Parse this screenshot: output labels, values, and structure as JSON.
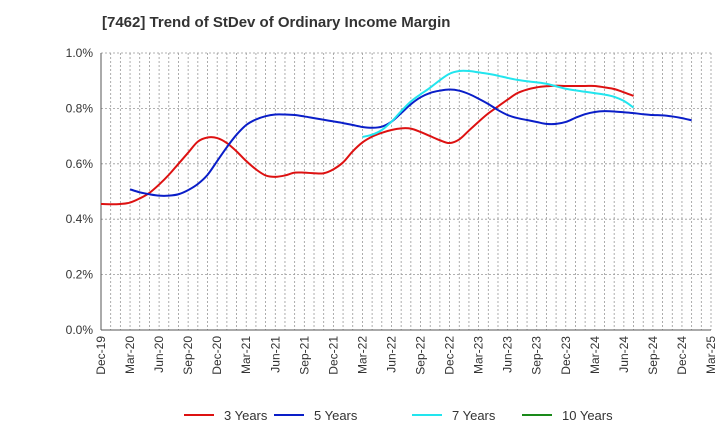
{
  "chart_data": {
    "type": "line",
    "title": "[7462]  Trend of StDev of Ordinary Income Margin",
    "x_tick_labels": [
      "Dec-19",
      "Mar-20",
      "Jun-20",
      "Sep-20",
      "Dec-20",
      "Mar-21",
      "Jun-21",
      "Sep-21",
      "Dec-21",
      "Mar-22",
      "Jun-22",
      "Sep-22",
      "Dec-22",
      "Mar-23",
      "Jun-23",
      "Sep-23",
      "Dec-23",
      "Mar-24",
      "Jun-24",
      "Sep-24",
      "Dec-24",
      "Mar-25"
    ],
    "y_tick_labels": [
      "0.0%",
      "0.2%",
      "0.4%",
      "0.6%",
      "0.8%",
      "1.0%"
    ],
    "ylim": [
      0,
      1.0
    ],
    "grid": true,
    "legend_position": "bottom",
    "series": [
      {
        "name": "3 Years",
        "color": "#dd1111",
        "start": "Dec-19",
        "values": [
          0.455,
          0.454,
          0.455,
          0.46,
          0.475,
          0.495,
          0.525,
          0.56,
          0.6,
          0.64,
          0.68,
          0.695,
          0.693,
          0.675,
          0.645,
          0.61,
          0.58,
          0.558,
          0.553,
          0.558,
          0.568,
          0.568,
          0.566,
          0.566,
          0.58,
          0.605,
          0.645,
          0.677,
          0.698,
          0.712,
          0.722,
          0.728,
          0.727,
          0.715,
          0.7,
          0.685,
          0.675,
          0.688,
          0.72,
          0.752,
          0.782,
          0.807,
          0.832,
          0.855,
          0.868,
          0.876,
          0.88,
          0.882,
          0.881,
          0.881,
          0.881,
          0.881,
          0.876,
          0.87,
          0.858,
          0.845
        ]
      },
      {
        "name": "5 Years",
        "color": "#0a1ec8",
        "start": "Mar-20",
        "values": [
          0.508,
          0.497,
          0.49,
          0.485,
          0.485,
          0.49,
          0.505,
          0.527,
          0.56,
          0.61,
          0.66,
          0.705,
          0.74,
          0.76,
          0.772,
          0.778,
          0.778,
          0.776,
          0.771,
          0.765,
          0.759,
          0.753,
          0.747,
          0.74,
          0.733,
          0.73,
          0.734,
          0.752,
          0.783,
          0.815,
          0.84,
          0.856,
          0.864,
          0.868,
          0.864,
          0.852,
          0.835,
          0.816,
          0.794,
          0.776,
          0.765,
          0.758,
          0.751,
          0.744,
          0.744,
          0.751,
          0.766,
          0.779,
          0.787,
          0.79,
          0.789,
          0.786,
          0.783,
          0.779,
          0.776,
          0.775,
          0.771,
          0.765,
          0.757
        ]
      },
      {
        "name": "7 Years",
        "color": "#22e5ee",
        "start": "Mar-22",
        "values": [
          0.697,
          0.705,
          0.722,
          0.752,
          0.79,
          0.825,
          0.851,
          0.875,
          0.902,
          0.925,
          0.935,
          0.935,
          0.93,
          0.925,
          0.918,
          0.91,
          0.903,
          0.898,
          0.894,
          0.889,
          0.88,
          0.871,
          0.865,
          0.86,
          0.855,
          0.85,
          0.842,
          0.827,
          0.803
        ]
      },
      {
        "name": "10 Years",
        "color": "#1a8a1a",
        "start": "Dec-24",
        "values": []
      }
    ]
  }
}
